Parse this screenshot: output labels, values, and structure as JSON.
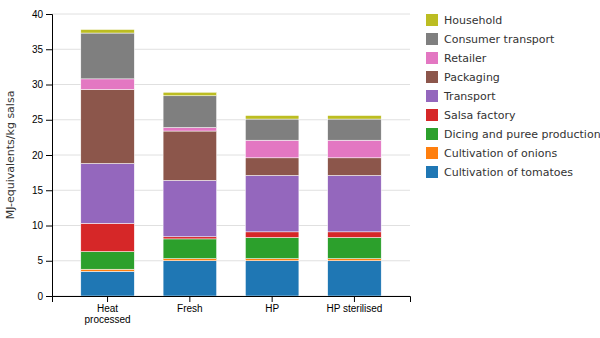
{
  "chart_data": {
    "type": "bar",
    "stacked": true,
    "categories": [
      "Heat\nprocessed",
      "Fresh",
      "HP",
      "HP sterilised"
    ],
    "ylabel": "MJ-equivalents/kg salsa",
    "ylim": [
      0,
      40
    ],
    "yticks": [
      0,
      5,
      10,
      15,
      20,
      25,
      30,
      35,
      40
    ],
    "grid": true,
    "legend": "right",
    "series": [
      {
        "name": "Cultivation of tomatoes",
        "values": [
          3.5,
          5.0,
          5.0,
          5.0
        ]
      },
      {
        "name": "Cultivation of onions",
        "values": [
          0.3,
          0.3,
          0.3,
          0.3
        ]
      },
      {
        "name": "Dicing and puree production",
        "values": [
          2.5,
          2.8,
          3.0,
          3.0
        ]
      },
      {
        "name": "Salsa factory",
        "values": [
          4.0,
          0.3,
          0.8,
          0.8
        ]
      },
      {
        "name": "Transport",
        "values": [
          8.5,
          8.0,
          8.0,
          8.0
        ]
      },
      {
        "name": "Packaging",
        "values": [
          10.5,
          7.0,
          2.5,
          2.5
        ]
      },
      {
        "name": "Retailer",
        "values": [
          1.5,
          0.5,
          2.5,
          2.5
        ]
      },
      {
        "name": "Consumer transport",
        "values": [
          6.5,
          4.5,
          3.0,
          3.0
        ]
      },
      {
        "name": "Household",
        "values": [
          0.5,
          0.5,
          0.5,
          0.5
        ]
      }
    ]
  }
}
